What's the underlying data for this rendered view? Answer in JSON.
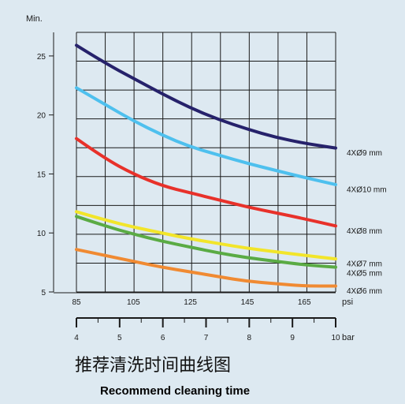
{
  "chart_data": {
    "type": "line",
    "title": "推荐清洗时间曲线图",
    "subtitle": "Recommend cleaning time",
    "ylabel": "Min.",
    "xlabel_psi": "psi",
    "xlabel_bar": "bar",
    "ylim": [
      5,
      27
    ],
    "xlim_psi": [
      85,
      176
    ],
    "xlim_bar": [
      4,
      10
    ],
    "y_ticks": [
      5,
      10,
      15,
      20,
      25
    ],
    "x_ticks_psi": [
      85,
      105,
      125,
      145,
      165
    ],
    "x_ticks_bar": [
      4,
      5,
      6,
      7,
      8,
      9,
      10
    ],
    "grid": true,
    "x": [
      85,
      95,
      105,
      115,
      125,
      135,
      145,
      155,
      165,
      176
    ],
    "series": [
      {
        "name": "4XØ9 mm",
        "color": "#26226b",
        "values": [
          25.9,
          24.4,
          23.1,
          21.8,
          20.6,
          19.6,
          18.8,
          18.1,
          17.6,
          17.2
        ]
      },
      {
        "name": "4XØ10 mm",
        "color": "#4ec0ee",
        "values": [
          22.3,
          20.9,
          19.5,
          18.3,
          17.3,
          16.6,
          15.9,
          15.3,
          14.7,
          14.1
        ]
      },
      {
        "name": "4XØ8 mm",
        "color": "#e8312a",
        "values": [
          18.0,
          16.3,
          15.0,
          14.0,
          13.4,
          12.8,
          12.2,
          11.7,
          11.2,
          10.6
        ]
      },
      {
        "name": "4XØ7 mm",
        "color": "#f2e52a",
        "values": [
          11.8,
          11.1,
          10.5,
          10.0,
          9.5,
          9.1,
          8.7,
          8.4,
          8.1,
          7.8
        ]
      },
      {
        "name": "4XØ5 mm",
        "color": "#5aab44",
        "values": [
          11.4,
          10.6,
          9.9,
          9.3,
          8.8,
          8.3,
          7.9,
          7.6,
          7.3,
          7.1
        ]
      },
      {
        "name": "4XØ6 mm",
        "color": "#f08a32",
        "values": [
          8.6,
          8.1,
          7.6,
          7.1,
          6.7,
          6.3,
          5.9,
          5.7,
          5.5,
          5.5
        ]
      }
    ]
  }
}
